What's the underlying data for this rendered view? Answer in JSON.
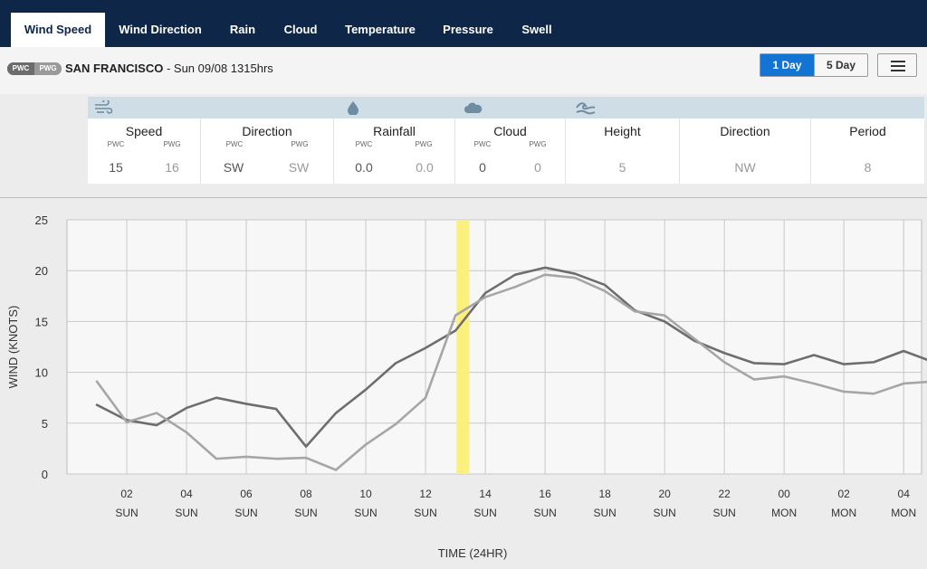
{
  "nav": {
    "tabs": [
      {
        "label": "Wind Speed",
        "active": true
      },
      {
        "label": "Wind Direction",
        "active": false
      },
      {
        "label": "Rain",
        "active": false
      },
      {
        "label": "Cloud",
        "active": false
      },
      {
        "label": "Temperature",
        "active": false
      },
      {
        "label": "Pressure",
        "active": false
      },
      {
        "label": "Swell",
        "active": false
      }
    ]
  },
  "header": {
    "badge_pwc": "PWC",
    "badge_pwg": "PWG",
    "location": "SAN FRANCISCO",
    "separator": " - ",
    "datetime": "Sun 09/08 1315hrs",
    "day_1": "1 Day",
    "day_5": "5 Day",
    "accent": "#1474d4"
  },
  "summary": {
    "icons": [
      "wind-icon",
      "rain-drop-icon",
      "cloud-icon",
      "swell-icon"
    ],
    "speed": {
      "label": "Speed",
      "pwc_label": "PWC",
      "pwg_label": "PWG",
      "pwc": "15",
      "pwg": "16"
    },
    "direction": {
      "label": "Direction",
      "pwc_label": "PWC",
      "pwg_label": "PWG",
      "pwc": "SW",
      "pwg": "SW"
    },
    "rainfall": {
      "label": "Rainfall",
      "pwc_label": "PWC",
      "pwg_label": "PWG",
      "pwc": "0.0",
      "pwg": "0.0"
    },
    "cloud": {
      "label": "Cloud",
      "pwc_label": "PWC",
      "pwg_label": "PWG",
      "pwc": "0",
      "pwg": "0"
    },
    "swell_height": {
      "label": "Height",
      "value": "5"
    },
    "swell_direction": {
      "label": "Direction",
      "value": "NW"
    },
    "swell_period": {
      "label": "Period",
      "value": "8"
    }
  },
  "chart_data": {
    "type": "line",
    "xlabel": "TIME (24HR)",
    "ylabel": "WIND (KNOTS)",
    "ylim": [
      0,
      25
    ],
    "yticks": [
      0,
      5,
      10,
      15,
      20,
      25
    ],
    "x_hours": [
      1,
      2,
      3,
      4,
      5,
      6,
      7,
      8,
      9,
      10,
      11,
      12,
      13,
      14,
      15,
      16,
      17,
      18,
      19,
      20,
      21,
      22,
      23,
      24,
      25,
      26,
      27,
      28,
      29
    ],
    "xtick_labels": [
      {
        "hour": "02",
        "day": "SUN"
      },
      {
        "hour": "04",
        "day": "SUN"
      },
      {
        "hour": "06",
        "day": "SUN"
      },
      {
        "hour": "08",
        "day": "SUN"
      },
      {
        "hour": "10",
        "day": "SUN"
      },
      {
        "hour": "12",
        "day": "SUN"
      },
      {
        "hour": "14",
        "day": "SUN"
      },
      {
        "hour": "16",
        "day": "SUN"
      },
      {
        "hour": "18",
        "day": "SUN"
      },
      {
        "hour": "20",
        "day": "SUN"
      },
      {
        "hour": "22",
        "day": "SUN"
      },
      {
        "hour": "00",
        "day": "MON"
      },
      {
        "hour": "02",
        "day": "MON"
      },
      {
        "hour": "04",
        "day": "MON"
      }
    ],
    "series": [
      {
        "color": "#6e6e6e",
        "values": [
          6.8,
          5.3,
          4.8,
          6.5,
          7.5,
          6.9,
          6.4,
          2.7,
          6.0,
          8.3,
          10.9,
          12.4,
          14.1,
          17.8,
          19.6,
          20.3,
          19.7,
          18.6,
          16.1,
          15.0,
          13.1,
          11.9,
          10.9,
          10.8,
          11.7,
          10.8,
          11.0,
          12.1,
          11.0
        ]
      },
      {
        "color": "#a6a6a6",
        "values": [
          9.1,
          5.1,
          6.0,
          4.1,
          1.5,
          1.7,
          1.5,
          1.6,
          0.4,
          2.9,
          4.9,
          7.5,
          15.6,
          17.4,
          18.4,
          19.6,
          19.3,
          18.0,
          16.0,
          15.6,
          13.3,
          11.0,
          9.3,
          9.6,
          8.9,
          8.1,
          7.9,
          8.9,
          9.1
        ]
      }
    ],
    "highlight_hour": 13.25,
    "highlight_color": "#fbf07c",
    "grid": true
  }
}
